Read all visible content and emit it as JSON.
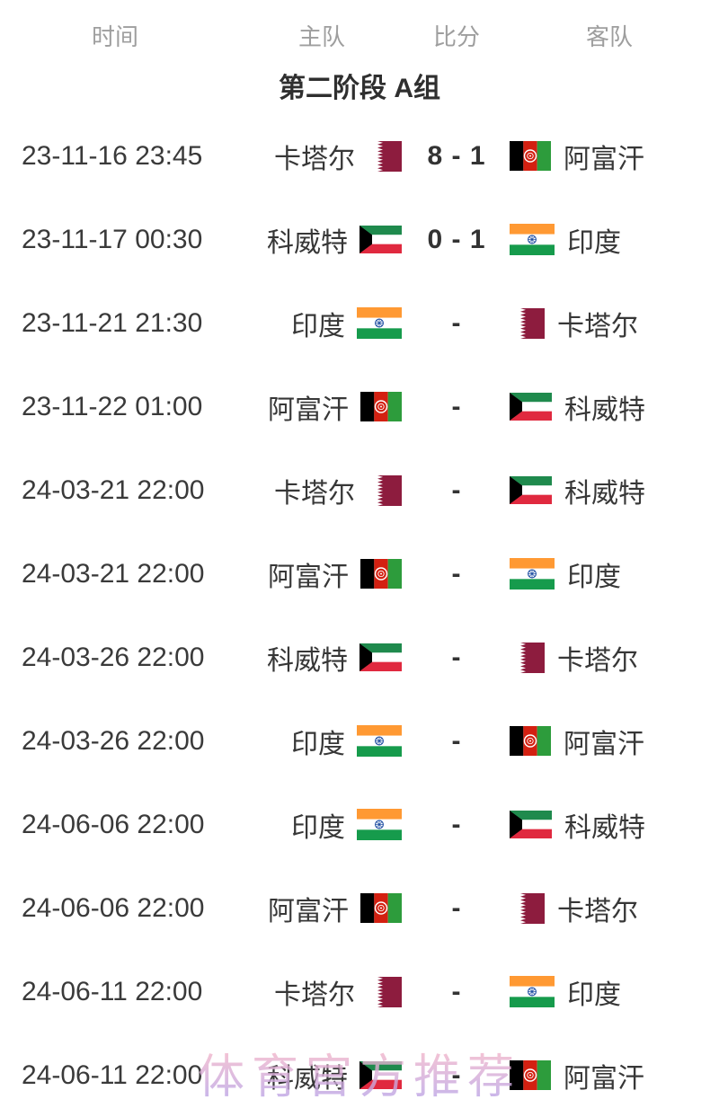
{
  "header": {
    "time": "时间",
    "home": "主队",
    "score": "比分",
    "away": "客队"
  },
  "section_title": "第二阶段 A组",
  "watermark": "体育官方推荐",
  "teams": {
    "qatar": "卡塔尔",
    "afghanistan": "阿富汗",
    "kuwait": "科威特",
    "india": "印度"
  },
  "flag_colors": {
    "qatar": {
      "maroon": "#8d1c3e",
      "white": "#ffffff"
    },
    "kuwait": {
      "green": "#1f8a4d",
      "white": "#ffffff",
      "red": "#e0293f",
      "black": "#000000"
    },
    "afghanistan": {
      "black": "#000000",
      "red": "#d32011",
      "green": "#2d9c3c",
      "emblem": "#ffffff"
    },
    "india": {
      "saffron": "#ff9933",
      "white": "#ffffff",
      "green": "#169b4c",
      "navy": "#1b4ba0"
    }
  },
  "text_colors": {
    "header_gray": "#9e9e9e",
    "primary": "#373737",
    "watermark_top": "#f5b6c9",
    "watermark_bottom": "#bba4e6"
  },
  "matches": [
    {
      "time": "23-11-16 23:45",
      "home": "qatar",
      "away": "afghanistan",
      "score": "8 - 1"
    },
    {
      "time": "23-11-17 00:30",
      "home": "kuwait",
      "away": "india",
      "score": "0 - 1"
    },
    {
      "time": "23-11-21 21:30",
      "home": "india",
      "away": "qatar",
      "score": "-"
    },
    {
      "time": "23-11-22 01:00",
      "home": "afghanistan",
      "away": "kuwait",
      "score": "-"
    },
    {
      "time": "24-03-21 22:00",
      "home": "qatar",
      "away": "kuwait",
      "score": "-"
    },
    {
      "time": "24-03-21 22:00",
      "home": "afghanistan",
      "away": "india",
      "score": "-"
    },
    {
      "time": "24-03-26 22:00",
      "home": "kuwait",
      "away": "qatar",
      "score": "-"
    },
    {
      "time": "24-03-26 22:00",
      "home": "india",
      "away": "afghanistan",
      "score": "-"
    },
    {
      "time": "24-06-06 22:00",
      "home": "india",
      "away": "kuwait",
      "score": "-"
    },
    {
      "time": "24-06-06 22:00",
      "home": "afghanistan",
      "away": "qatar",
      "score": "-"
    },
    {
      "time": "24-06-11 22:00",
      "home": "qatar",
      "away": "india",
      "score": "-"
    },
    {
      "time": "24-06-11 22:00",
      "home": "kuwait",
      "away": "afghanistan",
      "score": "-"
    }
  ]
}
